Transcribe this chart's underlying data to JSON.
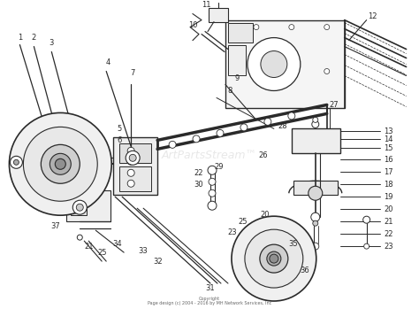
{
  "bg_color": "#ffffff",
  "line_color": "#2a2a2a",
  "watermark_text": "ArtPartsStream™",
  "watermark_color": "#cccccc",
  "watermark_alpha": 0.45,
  "copyright_text": "Copyright\nPage design (c) 2004 - 2016 by MH Network Services, Inc",
  "fig_width": 4.74,
  "fig_height": 3.49,
  "dpi": 100
}
